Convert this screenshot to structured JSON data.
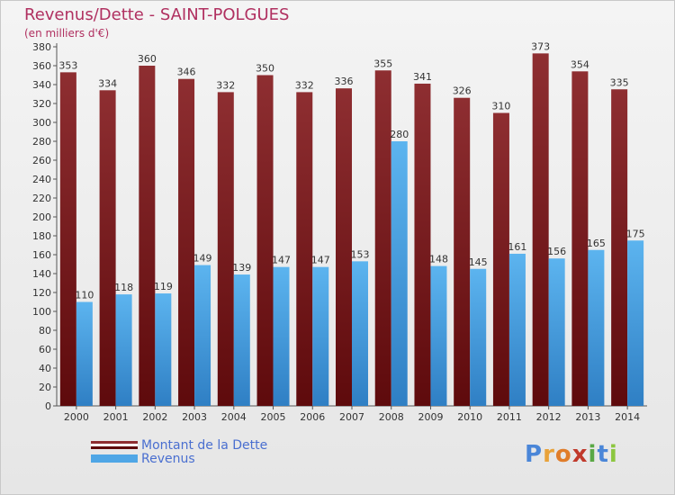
{
  "title": "Revenus/Dette - SAINT-POLGUES",
  "subtitle": "(en milliers d'€)",
  "colors": {
    "debt": "#7a1c1f",
    "revenue": "#4fa6e6",
    "title": "#b03060",
    "legend_text": "#4a6fd0"
  },
  "legend": {
    "items": [
      {
        "label": "Montant de la Dette",
        "color": "#7a1c1f"
      },
      {
        "label": "Revenus",
        "color": "#4fa6e6"
      }
    ],
    "placement": "bottom-left"
  },
  "logo": {
    "text": "Proxiti",
    "letters": [
      {
        "ch": "P",
        "color": "#4a86d8"
      },
      {
        "ch": "r",
        "color": "#e8a23a"
      },
      {
        "ch": "o",
        "color": "#e07d2a"
      },
      {
        "ch": "x",
        "color": "#c0392b"
      },
      {
        "ch": "i",
        "color": "#5aa845"
      },
      {
        "ch": "t",
        "color": "#4a86d8"
      },
      {
        "ch": "i",
        "color": "#8cc63f"
      }
    ]
  },
  "chart_data": {
    "type": "bar",
    "title": "Revenus/Dette - SAINT-POLGUES",
    "subtitle": "(en milliers d'€)",
    "xlabel": "",
    "ylabel": "",
    "categories": [
      "2000",
      "2001",
      "2002",
      "2003",
      "2004",
      "2005",
      "2006",
      "2007",
      "2008",
      "2009",
      "2010",
      "2011",
      "2012",
      "2013",
      "2014"
    ],
    "series": [
      {
        "name": "Montant de la Dette",
        "values": [
          353,
          334,
          360,
          346,
          332,
          350,
          332,
          336,
          355,
          341,
          326,
          310,
          373,
          354,
          335
        ]
      },
      {
        "name": "Revenus",
        "values": [
          110,
          118,
          119,
          149,
          139,
          147,
          147,
          153,
          280,
          148,
          145,
          161,
          156,
          165,
          175
        ]
      }
    ],
    "ylim": [
      0,
      380
    ],
    "yticks": [
      0,
      20,
      40,
      60,
      80,
      100,
      120,
      140,
      160,
      180,
      200,
      220,
      240,
      260,
      280,
      300,
      320,
      340,
      360,
      380
    ],
    "grid": false
  }
}
